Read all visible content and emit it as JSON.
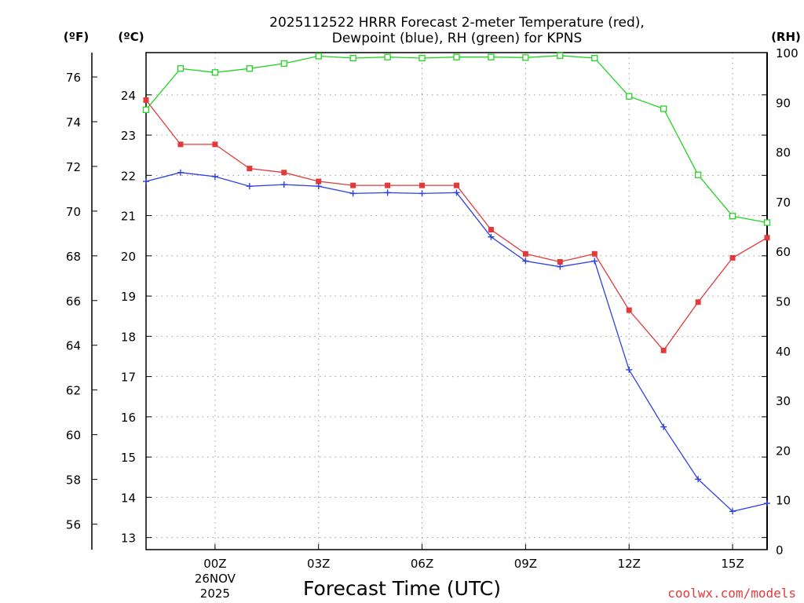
{
  "chart_data": {
    "type": "line",
    "title_line1": "2025112522 HRRR Forecast 2-meter Temperature (red),",
    "title_line2": "Dewpoint (blue), RH (green) for KPNS",
    "xlabel": "Forecast Time (UTC)",
    "credit": "coolwx.com/models",
    "units": {
      "fahrenheit": "(ºF)",
      "celsius": "(ºC)",
      "rh": "(RH)"
    },
    "x": [
      "22Z",
      "23Z",
      "00Z",
      "01Z",
      "02Z",
      "03Z",
      "04Z",
      "05Z",
      "06Z",
      "07Z",
      "08Z",
      "09Z",
      "10Z",
      "11Z",
      "12Z",
      "13Z",
      "14Z",
      "15Z",
      "16Z"
    ],
    "x_ticks": [
      {
        "index": 2,
        "label": "00Z",
        "sub1": "26NOV",
        "sub2": "2025"
      },
      {
        "index": 5,
        "label": "03Z"
      },
      {
        "index": 8,
        "label": "06Z"
      },
      {
        "index": 11,
        "label": "09Z"
      },
      {
        "index": 14,
        "label": "12Z"
      },
      {
        "index": 17,
        "label": "15Z"
      }
    ],
    "ylim_celsius": [
      12.7,
      25.05
    ],
    "celsius_ticks": [
      13,
      14,
      15,
      16,
      17,
      18,
      19,
      20,
      21,
      22,
      23,
      24
    ],
    "fahrenheit_ticks": [
      56,
      58,
      60,
      62,
      64,
      66,
      68,
      70,
      72,
      74,
      76
    ],
    "ylim_rh": [
      0,
      100
    ],
    "rh_ticks": [
      0,
      10,
      20,
      30,
      40,
      50,
      60,
      70,
      80,
      90,
      100
    ],
    "grid": true,
    "series": [
      {
        "name": "Temperature",
        "axis": "celsius",
        "color": "#e23a3a",
        "marker": "filled-square",
        "values": [
          23.87,
          22.77,
          22.77,
          22.17,
          22.07,
          21.85,
          21.75,
          21.75,
          21.75,
          21.75,
          20.65,
          20.05,
          19.85,
          20.05,
          18.65,
          17.65,
          18.85,
          19.95,
          20.45
        ]
      },
      {
        "name": "Dewpoint",
        "axis": "celsius",
        "color": "#2f3fe0",
        "marker": "plus",
        "values": [
          21.85,
          22.07,
          21.97,
          21.73,
          21.77,
          21.73,
          21.55,
          21.57,
          21.55,
          21.57,
          20.47,
          19.87,
          19.73,
          19.87,
          17.17,
          15.75,
          14.45,
          13.65,
          13.85
        ]
      },
      {
        "name": "RH",
        "axis": "rh",
        "color": "#22d322",
        "marker": "open-square",
        "values": [
          88.5,
          96.8,
          96.0,
          96.8,
          97.8,
          99.3,
          98.9,
          99.1,
          98.9,
          99.1,
          99.1,
          99.0,
          99.4,
          98.9,
          91.2,
          88.7,
          75.4,
          67.1,
          65.8
        ]
      }
    ]
  }
}
